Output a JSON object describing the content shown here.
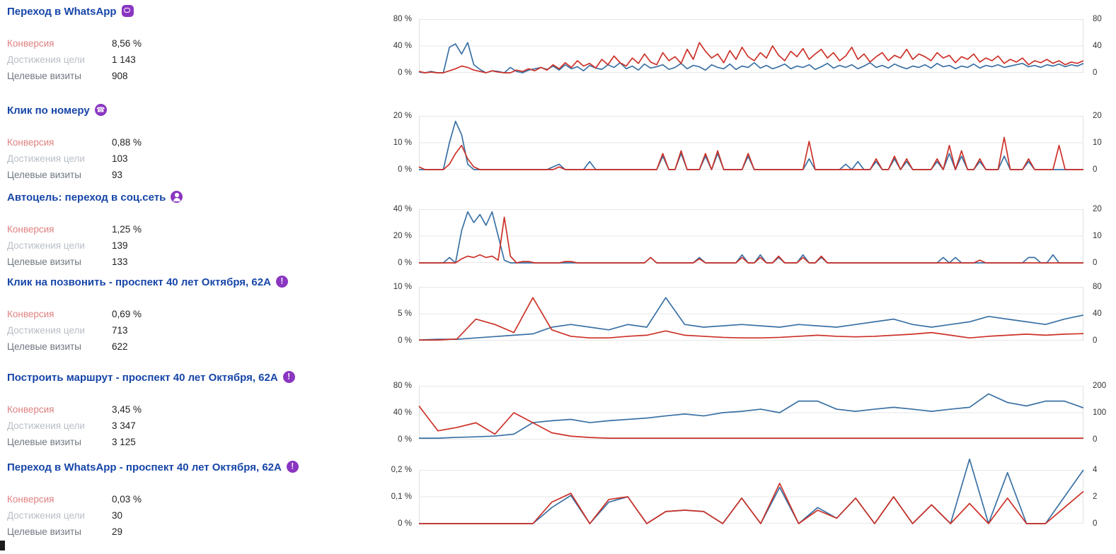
{
  "theme": {
    "title_color": "#1746a8",
    "icon_color": "#8a36c1",
    "conversion_line_color": "#cc3128",
    "reaches_line_color": "#3a71a4"
  },
  "metric_labels": {
    "conversion": "Конверсия",
    "goal_reaches": "Достижения цели",
    "goal_visits": "Целевые визиты"
  },
  "goals": [
    {
      "title": "Переход в WhatsApp",
      "icon": "whatsapp-chat-icon",
      "conversion": "8,56 %",
      "goal_reaches": "1 143",
      "goal_visits": "908"
    },
    {
      "title": "Клик по номеру",
      "icon": "phone-icon",
      "conversion": "0,88 %",
      "goal_reaches": "103",
      "goal_visits": "93"
    },
    {
      "title": "Автоцель: переход в соц.сеть",
      "icon": "person-icon",
      "conversion": "1,25 %",
      "goal_reaches": "139",
      "goal_visits": "133"
    },
    {
      "title": "Клик на позвонить - проспект 40 лет Октября, 62А",
      "icon": "exclamation-icon",
      "conversion": "0,69 %",
      "goal_reaches": "713",
      "goal_visits": "622"
    },
    {
      "title": "Построить маршрут - проспект 40 лет Октября, 62А",
      "icon": "exclamation-icon",
      "conversion": "3,45 %",
      "goal_reaches": "3 347",
      "goal_visits": "3 125"
    },
    {
      "title": "Переход в WhatsApp - проспект 40 лет Октября, 62А",
      "icon": "exclamation-icon",
      "conversion": "0,03 %",
      "goal_reaches": "30",
      "goal_visits": "29"
    }
  ],
  "chart_data": [
    {
      "type": "line",
      "title": "Переход в WhatsApp",
      "grid": true,
      "legend": "none",
      "axis_left": {
        "ticks": [
          "80 %",
          "40 %",
          "0 %"
        ],
        "max": 80
      },
      "axis_right": {
        "ticks": [
          "80",
          "40",
          "0"
        ],
        "max": 80
      },
      "series": [
        {
          "name": "Достижения цели",
          "axis": "right",
          "color": "#3a71a4",
          "values": [
            1,
            0,
            2,
            0,
            0,
            38,
            43,
            28,
            45,
            12,
            5,
            0,
            3,
            2,
            0,
            8,
            2,
            0,
            4,
            6,
            8,
            5,
            10,
            4,
            12,
            6,
            9,
            3,
            11,
            7,
            5,
            12,
            8,
            15,
            6,
            10,
            4,
            13,
            7,
            9,
            12,
            5,
            8,
            14,
            6,
            11,
            9,
            4,
            12,
            8,
            6,
            13,
            5,
            10,
            8,
            15,
            7,
            11,
            6,
            9,
            13,
            6,
            10,
            8,
            12,
            5,
            9,
            14,
            7,
            11,
            8,
            12,
            6,
            10,
            15,
            8,
            11,
            7,
            13,
            9,
            6,
            10,
            8,
            12,
            7,
            14,
            9,
            11,
            6,
            10,
            8,
            13,
            7,
            11,
            9,
            12,
            8,
            10,
            12,
            14,
            9,
            11,
            8,
            12,
            10,
            13,
            9,
            12,
            10,
            14
          ]
        },
        {
          "name": "Конверсия",
          "axis": "left",
          "color": "#cc3128",
          "values": [
            2,
            0,
            1,
            0,
            0,
            3,
            6,
            10,
            8,
            4,
            2,
            0,
            3,
            1,
            0,
            0,
            4,
            2,
            6,
            3,
            8,
            4,
            12,
            6,
            15,
            8,
            18,
            10,
            14,
            7,
            20,
            12,
            25,
            15,
            10,
            22,
            14,
            28,
            16,
            12,
            30,
            18,
            24,
            14,
            35,
            20,
            45,
            32,
            22,
            28,
            15,
            33,
            20,
            38,
            24,
            18,
            30,
            22,
            40,
            26,
            18,
            32,
            24,
            36,
            20,
            28,
            35,
            22,
            30,
            18,
            25,
            38,
            20,
            28,
            16,
            24,
            30,
            18,
            26,
            22,
            35,
            20,
            28,
            24,
            18,
            30,
            22,
            26,
            15,
            24,
            20,
            28,
            16,
            22,
            18,
            25,
            14,
            20,
            16,
            22,
            12,
            18,
            15,
            20,
            14,
            18,
            12,
            16,
            14,
            18
          ]
        }
      ]
    },
    {
      "type": "line",
      "title": "Клик по номеру",
      "grid": true,
      "legend": "none",
      "axis_left": {
        "ticks": [
          "20 %",
          "10 %",
          "0 %"
        ],
        "max": 20
      },
      "axis_right": {
        "ticks": [
          "20",
          "10",
          "0"
        ],
        "max": 20
      },
      "series": [
        {
          "name": "Достижения цели",
          "axis": "right",
          "color": "#3a71a4",
          "values": [
            0,
            0,
            0,
            0,
            0,
            10,
            18,
            13,
            2,
            0,
            0,
            0,
            0,
            0,
            0,
            0,
            0,
            0,
            0,
            0,
            0,
            0,
            1,
            2,
            0,
            0,
            0,
            0,
            3,
            0,
            0,
            0,
            0,
            0,
            0,
            0,
            0,
            0,
            0,
            0,
            5,
            0,
            0,
            6,
            0,
            0,
            0,
            5,
            0,
            6,
            0,
            0,
            0,
            0,
            5,
            0,
            0,
            0,
            0,
            0,
            0,
            0,
            0,
            0,
            4,
            0,
            0,
            0,
            0,
            0,
            2,
            0,
            3,
            0,
            0,
            3,
            0,
            0,
            4,
            0,
            3,
            0,
            0,
            0,
            0,
            3,
            0,
            6,
            0,
            5,
            0,
            0,
            3,
            0,
            0,
            0,
            5,
            0,
            0,
            0,
            3,
            0,
            0,
            0,
            0,
            0,
            0,
            0,
            0,
            0
          ]
        },
        {
          "name": "Конверсия",
          "axis": "left",
          "color": "#cc3128",
          "values": [
            1,
            0,
            0,
            0,
            0,
            2,
            6,
            9,
            4,
            1,
            0,
            0,
            0,
            0,
            0,
            0,
            0,
            0,
            0,
            0,
            0,
            0,
            0,
            1,
            0,
            0,
            0,
            0,
            0,
            0,
            0,
            0,
            0,
            0,
            0,
            0,
            0,
            0,
            0,
            0,
            6,
            0,
            0,
            7,
            0,
            0,
            0,
            6,
            0,
            7,
            0,
            0,
            0,
            0,
            6,
            0,
            0,
            0,
            0,
            0,
            0,
            0,
            0,
            0,
            10.5,
            0,
            0,
            0,
            0,
            0,
            0,
            0,
            0,
            0,
            0,
            4,
            0,
            0,
            5,
            0,
            4,
            0,
            0,
            0,
            0,
            4,
            0,
            9,
            0,
            7,
            0,
            0,
            4,
            0,
            0,
            0,
            12,
            0,
            0,
            0,
            4,
            0,
            0,
            0,
            0,
            9,
            0,
            0,
            0,
            0
          ]
        }
      ]
    },
    {
      "type": "line",
      "title": "Автоцель: переход в соц.сеть",
      "grid": true,
      "legend": "none",
      "axis_left": {
        "ticks": [
          "40 %",
          "20 %",
          "0 %"
        ],
        "max": 40
      },
      "axis_right": {
        "ticks": [
          "20",
          "10",
          "0"
        ],
        "max": 20
      },
      "series": [
        {
          "name": "Достижения цели",
          "axis": "right",
          "color": "#3a71a4",
          "values": [
            0,
            0,
            0,
            0,
            0,
            2,
            0,
            12,
            19,
            15,
            18,
            14,
            19,
            10,
            1,
            0,
            0,
            0,
            0,
            0,
            0,
            0,
            0,
            0,
            0,
            0,
            0,
            0,
            0,
            0,
            0,
            0,
            0,
            0,
            0,
            0,
            0,
            0,
            2,
            0,
            0,
            0,
            0,
            0,
            0,
            0,
            2,
            0,
            0,
            0,
            0,
            0,
            0,
            3,
            0,
            0,
            3,
            0,
            0,
            2,
            0,
            0,
            0,
            3,
            0,
            0,
            2,
            0,
            0,
            0,
            0,
            0,
            0,
            0,
            0,
            0,
            0,
            0,
            0,
            0,
            0,
            0,
            0,
            0,
            0,
            0,
            2,
            0,
            2,
            0,
            0,
            0,
            0,
            0,
            0,
            0,
            0,
            0,
            0,
            0,
            2,
            2,
            0,
            0,
            3,
            0,
            0,
            0,
            0,
            0
          ]
        },
        {
          "name": "Конверсия",
          "axis": "left",
          "color": "#cc3128",
          "values": [
            0,
            0,
            0,
            0,
            0,
            0,
            0,
            3,
            5,
            4,
            6,
            4,
            5,
            2,
            34,
            5,
            0,
            1,
            1,
            0,
            0,
            0,
            0,
            0,
            1,
            1,
            0,
            0,
            0,
            0,
            0,
            0,
            0,
            0,
            0,
            0,
            0,
            0,
            4,
            0,
            0,
            0,
            0,
            0,
            0,
            0,
            3,
            0,
            0,
            0,
            0,
            0,
            0,
            4,
            0,
            0,
            4,
            0,
            0,
            5,
            0,
            0,
            0,
            4,
            0,
            0,
            5,
            0,
            0,
            0,
            0,
            0,
            0,
            0,
            0,
            0,
            0,
            0,
            0,
            0,
            0,
            0,
            0,
            0,
            0,
            0,
            0,
            0,
            0,
            0,
            0,
            0,
            2,
            0,
            0,
            0,
            0,
            0,
            0,
            0,
            0,
            0,
            0,
            0,
            0,
            0,
            0,
            0,
            0,
            0
          ]
        }
      ]
    },
    {
      "type": "line",
      "title": "Клик на позвонить - проспект 40 лет Октября, 62А",
      "grid": true,
      "legend": "none",
      "axis_left": {
        "ticks": [
          "10 %",
          "5 %",
          "0 %"
        ],
        "max": 10
      },
      "axis_right": {
        "ticks": [
          "80",
          "40",
          "0"
        ],
        "max": 80
      },
      "series": [
        {
          "name": "Достижения цели",
          "axis": "right",
          "color": "#3a71a4",
          "values": [
            1,
            2,
            2,
            4,
            6,
            8,
            10,
            20,
            24,
            20,
            16,
            24,
            20,
            64,
            24,
            20,
            22,
            24,
            22,
            20,
            24,
            22,
            20,
            24,
            28,
            32,
            24,
            20,
            24,
            28,
            36,
            32,
            28,
            24,
            32,
            38
          ]
        },
        {
          "name": "Конверсия",
          "axis": "left",
          "color": "#cc3128",
          "values": [
            0.1,
            0.1,
            0.3,
            4,
            3,
            1.5,
            8,
            2,
            0.8,
            0.5,
            0.5,
            0.8,
            1,
            1.8,
            1,
            0.8,
            0.6,
            0.5,
            0.5,
            0.6,
            0.8,
            1,
            0.8,
            0.7,
            0.8,
            1,
            1.2,
            1.5,
            1,
            0.5,
            0.8,
            1,
            1.2,
            1,
            1.2,
            1.3
          ]
        }
      ]
    },
    {
      "type": "line",
      "title": "Построить маршрут - проспект 40 лет Октября, 62А",
      "grid": true,
      "legend": "none",
      "axis_left": {
        "ticks": [
          "80 %",
          "40 %",
          "0 %"
        ],
        "max": 80
      },
      "axis_right": {
        "ticks": [
          "200",
          "100",
          "0"
        ],
        "max": 200
      },
      "series": [
        {
          "name": "Достижения цели",
          "axis": "right",
          "color": "#3a71a4",
          "values": [
            5,
            5,
            8,
            10,
            13,
            20,
            63,
            70,
            75,
            63,
            70,
            75,
            80,
            88,
            95,
            88,
            100,
            105,
            113,
            100,
            143,
            143,
            113,
            105,
            113,
            120,
            113,
            105,
            113,
            120,
            170,
            138,
            125,
            143,
            143,
            118
          ]
        },
        {
          "name": "Конверсия",
          "axis": "left",
          "color": "#cc3128",
          "values": [
            50,
            13,
            18,
            25,
            8,
            40,
            25,
            10,
            5,
            3,
            2,
            2,
            2,
            2,
            2,
            2,
            2,
            2,
            2,
            2,
            2,
            2,
            2,
            2,
            2,
            2,
            2,
            2,
            2,
            2,
            2,
            2,
            2,
            2,
            2,
            2
          ]
        }
      ]
    },
    {
      "type": "line",
      "title": "Переход в WhatsApp - проспект 40 лет Октября, 62А",
      "grid": true,
      "legend": "none",
      "axis_left": {
        "ticks": [
          "0,2 %",
          "0,1 %",
          "0 %"
        ],
        "max": 0.2
      },
      "axis_right": {
        "ticks": [
          "4",
          "2",
          "0"
        ],
        "max": 4
      },
      "series": [
        {
          "name": "Достижения цели",
          "axis": "right",
          "color": "#3a71a4",
          "values": [
            0,
            0,
            0,
            0,
            0,
            0,
            0,
            1.2,
            2.1,
            0,
            1.6,
            2,
            0,
            0.9,
            1,
            0.9,
            0,
            1.9,
            0,
            2.7,
            0,
            1.2,
            0.4,
            1.9,
            0,
            2,
            0,
            1.4,
            0,
            4.8,
            0,
            3.8,
            0,
            0,
            2,
            4
          ]
        },
        {
          "name": "Конверсия",
          "axis": "left",
          "color": "#cc3128",
          "values": [
            0,
            0,
            0,
            0,
            0,
            0,
            0,
            0.08,
            0.113,
            0,
            0.09,
            0.1,
            0,
            0.045,
            0.05,
            0.045,
            0,
            0.095,
            0,
            0.15,
            0,
            0.05,
            0.02,
            0.095,
            0,
            0.1,
            0,
            0.07,
            0,
            0.075,
            0,
            0.095,
            0,
            0,
            0.06,
            0.12
          ]
        }
      ]
    }
  ]
}
